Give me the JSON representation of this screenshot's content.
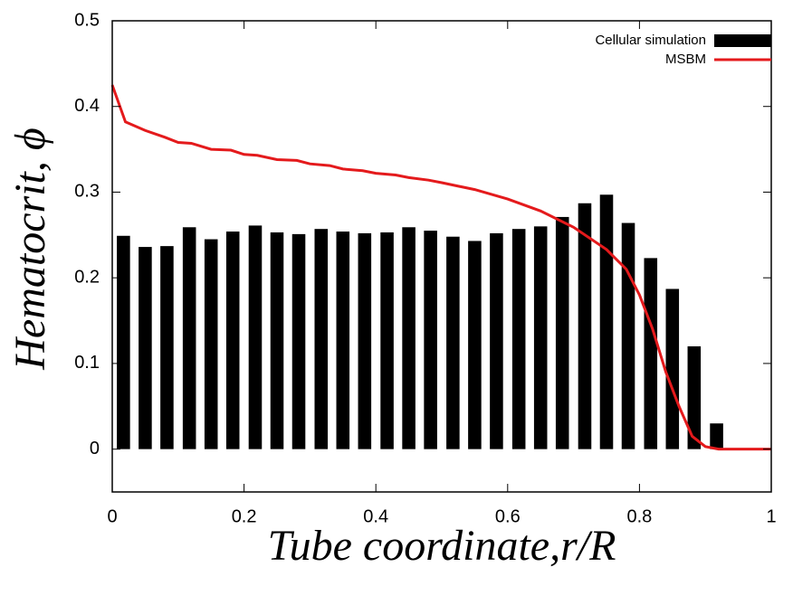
{
  "chart_data": {
    "type": "bar_line",
    "xlabel": "Tube coordinate,r/R",
    "ylabel": "Hematocrit, ϕ",
    "xlim": [
      0,
      1
    ],
    "xticks": [
      0,
      0.2,
      0.4,
      0.6,
      0.8,
      1
    ],
    "ylim": [
      -0.05,
      0.5
    ],
    "yticks": [
      0,
      0.1,
      0.2,
      0.3,
      0.4,
      0.5
    ],
    "legend": "upper right",
    "series": [
      {
        "name": "Cellular simulation",
        "type": "bar",
        "color": "#000000",
        "x": [
          0.017,
          0.05,
          0.083,
          0.117,
          0.15,
          0.183,
          0.217,
          0.25,
          0.283,
          0.317,
          0.35,
          0.383,
          0.417,
          0.45,
          0.483,
          0.517,
          0.55,
          0.583,
          0.617,
          0.65,
          0.683,
          0.717,
          0.75,
          0.783,
          0.817,
          0.85,
          0.883,
          0.917
        ],
        "values": [
          0.249,
          0.236,
          0.237,
          0.259,
          0.245,
          0.254,
          0.261,
          0.253,
          0.251,
          0.257,
          0.254,
          0.252,
          0.253,
          0.259,
          0.255,
          0.248,
          0.243,
          0.252,
          0.257,
          0.26,
          0.271,
          0.287,
          0.297,
          0.264,
          0.223,
          0.187,
          0.12,
          0.03
        ]
      },
      {
        "name": "MSBM",
        "type": "line",
        "color": "#e41a1c",
        "x": [
          0,
          0.02,
          0.05,
          0.08,
          0.1,
          0.12,
          0.15,
          0.18,
          0.2,
          0.22,
          0.25,
          0.28,
          0.3,
          0.33,
          0.35,
          0.38,
          0.4,
          0.43,
          0.45,
          0.48,
          0.5,
          0.55,
          0.6,
          0.65,
          0.7,
          0.75,
          0.78,
          0.8,
          0.82,
          0.84,
          0.86,
          0.88,
          0.9,
          0.92,
          1
        ],
        "values": [
          0.425,
          0.382,
          0.372,
          0.364,
          0.358,
          0.357,
          0.35,
          0.349,
          0.344,
          0.343,
          0.338,
          0.337,
          0.333,
          0.331,
          0.327,
          0.325,
          0.322,
          0.32,
          0.317,
          0.314,
          0.311,
          0.303,
          0.292,
          0.278,
          0.259,
          0.233,
          0.21,
          0.18,
          0.14,
          0.09,
          0.05,
          0.015,
          0.003,
          0,
          0
        ]
      }
    ]
  }
}
